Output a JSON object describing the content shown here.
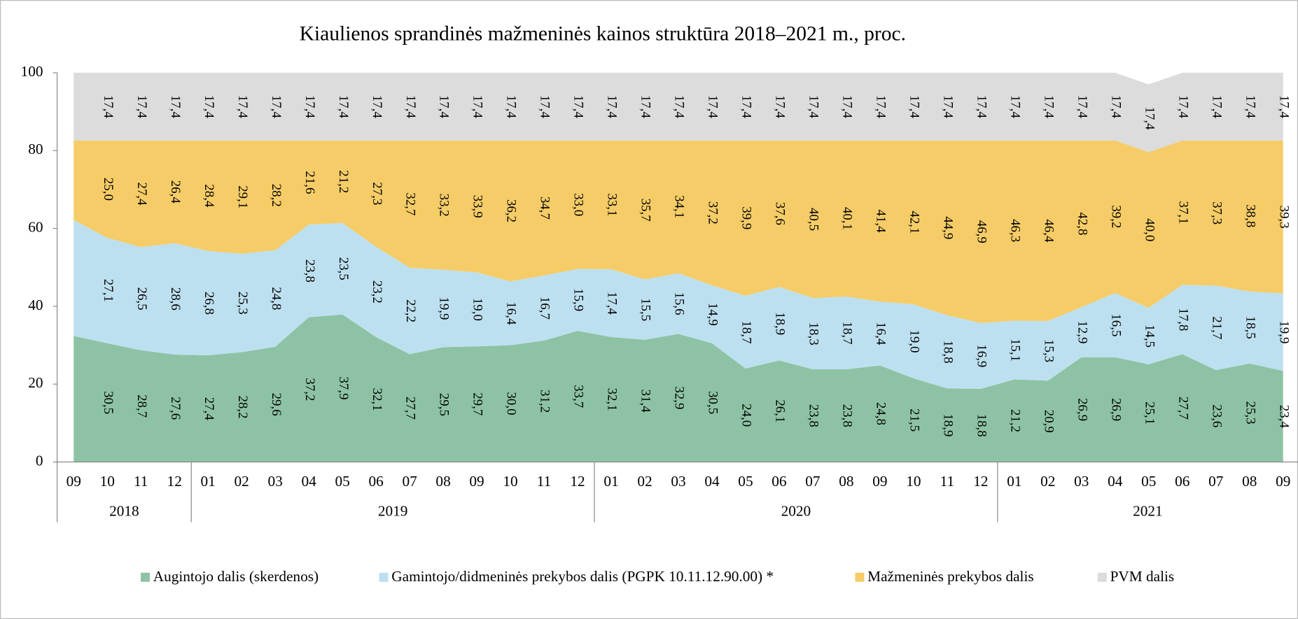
{
  "chart_data": {
    "type": "stacked_area",
    "title": "Kiaulienos sprandinės mažmeninės  kainos struktūra 2018–2021 m., proc.",
    "categories": [
      "09",
      "10",
      "11",
      "12",
      "01",
      "02",
      "03",
      "04",
      "05",
      "06",
      "07",
      "08",
      "09",
      "10",
      "11",
      "12",
      "01",
      "02",
      "03",
      "04",
      "05",
      "06",
      "07",
      "08",
      "09",
      "10",
      "11",
      "12",
      "01",
      "02",
      "03",
      "04",
      "05",
      "06",
      "07",
      "08",
      "09"
    ],
    "groups": [
      {
        "label": "2018",
        "size": 4
      },
      {
        "label": "2019",
        "size": 12
      },
      {
        "label": "2020",
        "size": 12
      },
      {
        "label": "2021",
        "size": 9
      }
    ],
    "ylim": [
      0,
      100
    ],
    "yticks": [
      0,
      20,
      40,
      60,
      80,
      100
    ],
    "series": [
      {
        "name": "Augintojo dalis (skerdenos)",
        "color": "#8dc3a4",
        "values": [
          32.4,
          30.5,
          28.7,
          27.6,
          27.4,
          28.2,
          29.6,
          37.2,
          37.9,
          32.1,
          27.7,
          29.5,
          29.7,
          30.0,
          31.2,
          33.7,
          32.1,
          31.4,
          32.9,
          30.5,
          24.0,
          26.1,
          23.8,
          23.8,
          24.8,
          21.5,
          18.9,
          18.8,
          21.2,
          20.9,
          26.9,
          26.9,
          25.1,
          27.7,
          23.6,
          25.3,
          23.4
        ],
        "value_labels": [
          null,
          "30,5",
          "28,7",
          "27,6",
          "27,4",
          "28,2",
          "29,6",
          "37,2",
          "37,9",
          "32,1",
          "27,7",
          "29,5",
          "29,7",
          "30,0",
          "31,2",
          "33,7",
          "32,1",
          "31,4",
          "32,9",
          "30,5",
          "24,0",
          "26,1",
          "23,8",
          "23,8",
          "24,8",
          "21,5",
          "18,9",
          "18,8",
          "21,2",
          "20,9",
          "26,9",
          "26,9",
          "25,1",
          "27,7",
          "23,6",
          "25,3",
          "23,4"
        ]
      },
      {
        "name": "Gamintojo/didmeninės prekybos dalis (PGPK 10.11.12.90.00) *",
        "color": "#bde0f0",
        "values": [
          29.8,
          27.1,
          26.5,
          28.6,
          26.8,
          25.3,
          24.8,
          23.8,
          23.5,
          23.2,
          22.2,
          19.9,
          19.0,
          16.4,
          16.7,
          15.9,
          17.4,
          15.5,
          15.6,
          14.9,
          18.7,
          18.9,
          18.3,
          18.7,
          16.4,
          19.0,
          18.8,
          16.9,
          15.1,
          15.3,
          12.9,
          16.5,
          14.5,
          17.8,
          21.7,
          18.5,
          19.9
        ],
        "value_labels": [
          null,
          "27,1",
          "26,5",
          "28,6",
          "26,8",
          "25,3",
          "24,8",
          "23,8",
          "23,5",
          "23,2",
          "22,2",
          "19,9",
          "19,0",
          "16,4",
          "16,7",
          "15,9",
          "17,4",
          "15,5",
          "15,6",
          "14,9",
          "18,7",
          "18,9",
          "18,3",
          "18,7",
          "16,4",
          "19,0",
          "18,8",
          "16,9",
          "15,1",
          "15,3",
          "12,9",
          "16,5",
          "14,5",
          "17,8",
          "21,7",
          "18,5",
          "19,9"
        ]
      },
      {
        "name": "Mažmeninės prekybos dalis",
        "color": "#f5cc67",
        "values": [
          20.4,
          25.0,
          27.4,
          26.4,
          28.4,
          29.1,
          28.2,
          21.6,
          21.2,
          27.3,
          32.7,
          33.2,
          33.9,
          36.2,
          34.7,
          33.0,
          33.1,
          35.7,
          34.1,
          37.2,
          39.9,
          37.6,
          40.5,
          40.1,
          41.4,
          42.1,
          44.9,
          46.9,
          46.3,
          46.4,
          42.8,
          39.2,
          40.0,
          37.1,
          37.3,
          38.8,
          39.3
        ],
        "value_labels": [
          null,
          "25,0",
          "27,4",
          "26,4",
          "28,4",
          "29,1",
          "28,2",
          "21,6",
          "21,2",
          "27,3",
          "32,7",
          "33,2",
          "33,9",
          "36,2",
          "34,7",
          "33,0",
          "33,1",
          "35,7",
          "34,1",
          "37,2",
          "39,9",
          "37,6",
          "40,5",
          "40,1",
          "41,4",
          "42,1",
          "44,9",
          "46,9",
          "46,3",
          "46,4",
          "42,8",
          "39,2",
          "40,0",
          "37,1",
          "37,3",
          "38,8",
          "39,3"
        ]
      },
      {
        "name": "PVM dalis",
        "color": "#dcdcdc",
        "values": [
          17.4,
          17.4,
          17.4,
          17.4,
          17.4,
          17.4,
          17.4,
          17.4,
          17.4,
          17.4,
          17.4,
          17.4,
          17.4,
          17.4,
          17.4,
          17.4,
          17.4,
          17.4,
          17.4,
          17.4,
          17.4,
          17.4,
          17.4,
          17.4,
          17.4,
          17.4,
          17.4,
          17.4,
          17.4,
          17.4,
          17.4,
          17.4,
          17.4,
          17.4,
          17.4,
          17.4,
          17.4
        ],
        "value_labels": [
          null,
          "17,4",
          "17,4",
          "17,4",
          "17,4",
          "17,4",
          "17,4",
          "17,4",
          "17,4",
          "17,4",
          "17,4",
          "17,4",
          "17,4",
          "17,4",
          "17,4",
          "17,4",
          "17,4",
          "17,4",
          "17,4",
          "17,4",
          "17,4",
          "17,4",
          "17,4",
          "17,4",
          "17,4",
          "17,4",
          "17,4",
          "17,4",
          "17,4",
          "17,4",
          "17,4",
          "17,4",
          "17,4",
          "17,4",
          "17,4",
          "17,4",
          "17,4"
        ]
      }
    ]
  }
}
